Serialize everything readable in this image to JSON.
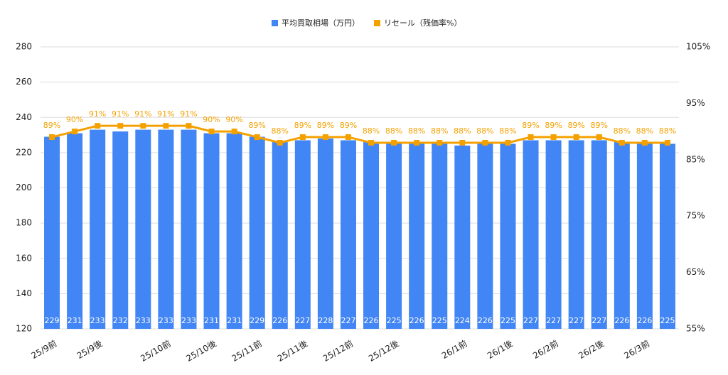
{
  "chart_data": {
    "type": "bar-line",
    "categories": [
      "25/9前",
      null,
      "25/9後",
      null,
      null,
      "25/10前",
      null,
      "25/10後",
      null,
      "25/11前",
      null,
      "25/11後",
      null,
      "25/12前",
      null,
      "25/12後",
      null,
      null,
      "26/1前",
      null,
      "26/1後",
      null,
      "26/2前",
      null,
      "26/2後",
      null,
      "26/3前",
      null
    ],
    "series": [
      {
        "name": "平均買取相場（万円）",
        "color": "#4285f4",
        "type": "bar",
        "values": [
          229,
          231,
          233,
          232,
          233,
          233,
          233,
          231,
          231,
          229,
          226,
          227,
          228,
          227,
          226,
          225,
          226,
          225,
          224,
          226,
          225,
          227,
          227,
          227,
          227,
          226,
          226,
          225
        ]
      },
      {
        "name": "リセール（残価率%）",
        "color": "#f4a100",
        "type": "line",
        "axis": "y2",
        "values": [
          89,
          90,
          91,
          91,
          91,
          91,
          91,
          90,
          90,
          89,
          88,
          89,
          89,
          89,
          88,
          88,
          88,
          88,
          88,
          88,
          88,
          89,
          89,
          89,
          89,
          88,
          88,
          88
        ],
        "value_labels": [
          "89%",
          "90%",
          "91%",
          "91%",
          "91%",
          "91%",
          "91%",
          "90%",
          "90%",
          "89%",
          "88%",
          "89%",
          "89%",
          "89%",
          "88%",
          "88%",
          "88%",
          "88%",
          "88%",
          "88%",
          "88%",
          "89%",
          "89%",
          "89%",
          "89%",
          "88%",
          "88%",
          "88%"
        ]
      }
    ],
    "ylim": [
      120,
      280
    ],
    "yticks": [
      120,
      140,
      160,
      180,
      200,
      220,
      240,
      260,
      280
    ],
    "y2lim": [
      55,
      105
    ],
    "y2ticks": [
      {
        "value": 55,
        "label": "55%"
      },
      {
        "value": 65,
        "label": "65%"
      },
      {
        "value": 75,
        "label": "75%"
      },
      {
        "value": 85,
        "label": "85%"
      },
      {
        "value": 95,
        "label": "95%"
      },
      {
        "value": 105,
        "label": "105%"
      }
    ],
    "grid": true,
    "legend": "top"
  }
}
